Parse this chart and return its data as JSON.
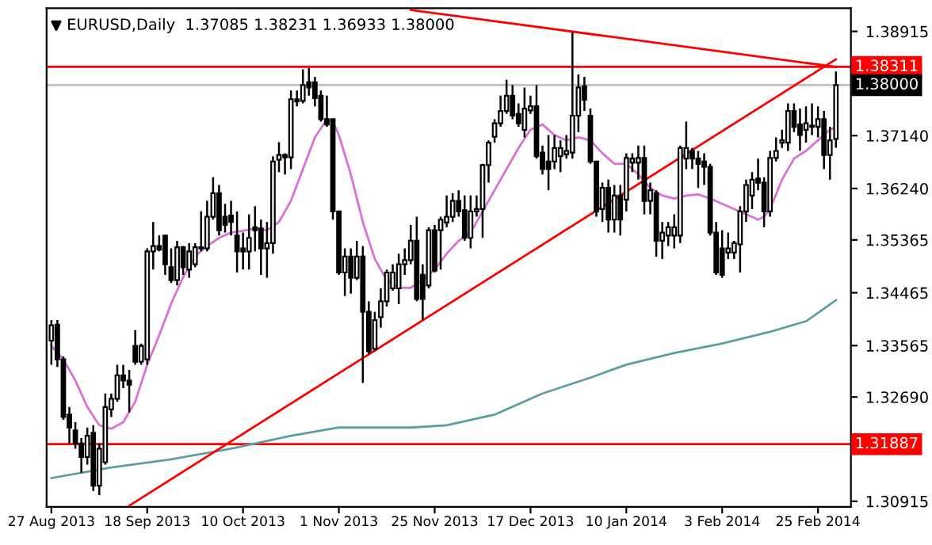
{
  "chart_data": {
    "type": "candlestick",
    "title": "EURUSD,Daily  1.37085 1.38231 1.36933 1.38000",
    "categories": [
      "27 Aug 2013",
      null,
      null,
      null,
      null,
      null,
      null,
      null,
      null,
      null,
      null,
      null,
      null,
      null,
      null,
      null,
      "18 Sep 2013",
      null,
      null,
      null,
      null,
      null,
      null,
      null,
      null,
      null,
      null,
      null,
      null,
      null,
      null,
      null,
      "10 Oct 2013",
      null,
      null,
      null,
      null,
      null,
      null,
      null,
      null,
      null,
      null,
      null,
      null,
      null,
      null,
      null,
      "1 Nov 2013",
      null,
      null,
      null,
      null,
      null,
      null,
      null,
      null,
      null,
      null,
      null,
      null,
      null,
      null,
      null,
      "25 Nov 2013",
      null,
      null,
      null,
      null,
      null,
      null,
      null,
      null,
      null,
      null,
      null,
      null,
      null,
      null,
      null,
      "17 Dec 2013",
      null,
      null,
      null,
      null,
      null,
      null,
      null,
      null,
      null,
      null,
      null,
      null,
      null,
      null,
      null,
      "10 Jan 2014",
      null,
      null,
      null,
      null,
      null,
      null,
      null,
      null,
      null,
      null,
      null,
      null,
      null,
      null,
      null,
      "3 Feb 2014",
      null,
      null,
      null,
      null,
      null,
      null,
      null,
      null,
      null,
      null,
      null,
      null,
      null,
      null,
      null,
      "25 Feb 2014",
      null,
      null,
      null
    ],
    "ohlc": [
      [
        1.3365,
        1.34,
        1.3324,
        1.3391
      ],
      [
        1.3392,
        1.34,
        1.332,
        1.3333
      ],
      [
        1.3333,
        1.3338,
        1.323,
        1.3235
      ],
      [
        1.3239,
        1.3252,
        1.319,
        1.3217
      ],
      [
        1.3212,
        1.3226,
        1.3181,
        1.319
      ],
      [
        1.319,
        1.3199,
        1.314,
        1.3167
      ],
      [
        1.3167,
        1.3217,
        1.3154,
        1.3203
      ],
      [
        1.3208,
        1.3221,
        1.3109,
        1.3118
      ],
      [
        1.3118,
        1.319,
        1.3102,
        1.3181
      ],
      [
        1.3158,
        1.3275,
        1.3154,
        1.3252
      ],
      [
        1.3248,
        1.3275,
        1.3235,
        1.3266
      ],
      [
        1.3266,
        1.3324,
        1.3261,
        1.3306
      ],
      [
        1.3306,
        1.3324,
        1.3284,
        1.3297
      ],
      [
        1.3297,
        1.3315,
        1.3243,
        1.329
      ],
      [
        1.3356,
        1.3383,
        1.3324,
        1.3329
      ],
      [
        1.3329,
        1.336,
        1.3324,
        1.3356
      ],
      [
        1.3333,
        1.3522,
        1.3324,
        1.3517
      ],
      [
        1.3517,
        1.3567,
        1.3486,
        1.3526
      ],
      [
        1.3526,
        1.3544,
        1.3517,
        1.352
      ],
      [
        1.3544,
        1.3544,
        1.3477,
        1.3495
      ],
      [
        1.349,
        1.3522,
        1.3463,
        1.3468
      ],
      [
        1.3468,
        1.3535,
        1.3459,
        1.3524
      ],
      [
        1.3524,
        1.3526,
        1.3477,
        1.349
      ],
      [
        1.3486,
        1.3531,
        1.3472,
        1.3517
      ],
      [
        1.3495,
        1.3531,
        1.349,
        1.3524
      ],
      [
        1.3524,
        1.3585,
        1.3517,
        1.3522
      ],
      [
        1.3522,
        1.3603,
        1.3517,
        1.3576
      ],
      [
        1.3576,
        1.3643,
        1.3571,
        1.3616
      ],
      [
        1.3616,
        1.363,
        1.3544,
        1.3553
      ],
      [
        1.3576,
        1.3598,
        1.3549,
        1.3562
      ],
      [
        1.3578,
        1.3603,
        1.3544,
        1.3567
      ],
      [
        1.3544,
        1.3585,
        1.3481,
        1.3517
      ],
      [
        1.3522,
        1.3549,
        1.3486,
        1.3517
      ],
      [
        1.3517,
        1.358,
        1.3486,
        1.354
      ],
      [
        1.3558,
        1.3594,
        1.3517,
        1.3553
      ],
      [
        1.3556,
        1.3571,
        1.3477,
        1.3522
      ],
      [
        1.3522,
        1.3567,
        1.3472,
        1.3531
      ],
      [
        1.3531,
        1.3679,
        1.3513,
        1.367
      ],
      [
        1.3673,
        1.3703,
        1.3652,
        1.3681
      ],
      [
        1.3681,
        1.3684,
        1.3648,
        1.3677
      ],
      [
        1.3677,
        1.3791,
        1.3657,
        1.3776
      ],
      [
        1.3776,
        1.3791,
        1.3764,
        1.3772
      ],
      [
        1.3773,
        1.3827,
        1.3769,
        1.38
      ],
      [
        1.3805,
        1.3829,
        1.3782,
        1.3796
      ],
      [
        1.3805,
        1.3814,
        1.3764,
        1.3778
      ],
      [
        1.3782,
        1.3791,
        1.3738,
        1.3742
      ],
      [
        1.3742,
        1.3782,
        1.3729,
        1.3733
      ],
      [
        1.3742,
        1.3742,
        1.3571,
        1.3585
      ],
      [
        1.3585,
        1.3585,
        1.3477,
        1.3481
      ],
      [
        1.3481,
        1.3522,
        1.3441,
        1.3508
      ],
      [
        1.3508,
        1.3522,
        1.3445,
        1.3472
      ],
      [
        1.3472,
        1.3535,
        1.3468,
        1.3508
      ],
      [
        1.3508,
        1.3526,
        1.3293,
        1.3414
      ],
      [
        1.3414,
        1.3432,
        1.3342,
        1.3347
      ],
      [
        1.3351,
        1.3414,
        1.3347,
        1.34
      ],
      [
        1.3405,
        1.3454,
        1.3387,
        1.3432
      ],
      [
        1.3432,
        1.3486,
        1.3423,
        1.3481
      ],
      [
        1.3454,
        1.3495,
        1.345,
        1.3481
      ],
      [
        1.3454,
        1.3513,
        1.3427,
        1.3495
      ],
      [
        1.3495,
        1.3522,
        1.3477,
        1.3502
      ],
      [
        1.3502,
        1.3562,
        1.3495,
        1.3535
      ],
      [
        1.3535,
        1.3576,
        1.3432,
        1.3436
      ],
      [
        1.3477,
        1.3495,
        1.34,
        1.3436
      ],
      [
        1.3459,
        1.3558,
        1.3454,
        1.3553
      ],
      [
        1.3553,
        1.3562,
        1.3481,
        1.3484
      ],
      [
        1.3553,
        1.3576,
        1.3486,
        1.3571
      ],
      [
        1.3566,
        1.3612,
        1.3558,
        1.3576
      ],
      [
        1.3576,
        1.3616,
        1.3567,
        1.3603
      ],
      [
        1.3603,
        1.3621,
        1.3576,
        1.3585
      ],
      [
        1.3587,
        1.3612,
        1.3535,
        1.354
      ],
      [
        1.354,
        1.3612,
        1.3522,
        1.3585
      ],
      [
        1.3585,
        1.3612,
        1.3576,
        1.3589
      ],
      [
        1.3589,
        1.3666,
        1.354,
        1.3664
      ],
      [
        1.3664,
        1.3706,
        1.3634,
        1.3702
      ],
      [
        1.3712,
        1.3742,
        1.3702,
        1.3735
      ],
      [
        1.3735,
        1.3782,
        1.3729,
        1.3756
      ],
      [
        1.3756,
        1.3809,
        1.3751,
        1.3782
      ],
      [
        1.3782,
        1.38,
        1.3742,
        1.3748
      ],
      [
        1.3751,
        1.3769,
        1.3729,
        1.3735
      ],
      [
        1.3724,
        1.3796,
        1.3711,
        1.376
      ],
      [
        1.3757,
        1.3782,
        1.3751,
        1.3764
      ],
      [
        1.3764,
        1.38,
        1.3675,
        1.3679
      ],
      [
        1.3685,
        1.3697,
        1.3648,
        1.3657
      ],
      [
        1.367,
        1.3715,
        1.3621,
        1.3657
      ],
      [
        1.367,
        1.3715,
        1.3657,
        1.3693
      ],
      [
        1.3679,
        1.3706,
        1.3652,
        1.3693
      ],
      [
        1.3682,
        1.3715,
        1.3675,
        1.3688
      ],
      [
        1.3685,
        1.389,
        1.3675,
        1.3748
      ],
      [
        1.3748,
        1.3818,
        1.372,
        1.3796
      ],
      [
        1.3798,
        1.3814,
        1.3756,
        1.3775
      ],
      [
        1.3748,
        1.376,
        1.3666,
        1.367
      ],
      [
        1.367,
        1.367,
        1.3576,
        1.3585
      ],
      [
        1.3589,
        1.3634,
        1.3567,
        1.3625
      ],
      [
        1.3625,
        1.3639,
        1.3549,
        1.3571
      ],
      [
        1.3571,
        1.363,
        1.3549,
        1.3612
      ],
      [
        1.3612,
        1.363,
        1.3544,
        1.3571
      ],
      [
        1.3605,
        1.3684,
        1.3585,
        1.3676
      ],
      [
        1.3668,
        1.3684,
        1.3652,
        1.3675
      ],
      [
        1.3668,
        1.3697,
        1.3639,
        1.3676
      ],
      [
        1.3676,
        1.3697,
        1.358,
        1.3603
      ],
      [
        1.3603,
        1.3634,
        1.358,
        1.3621
      ],
      [
        1.3616,
        1.3621,
        1.3508,
        1.3535
      ],
      [
        1.3535,
        1.3567,
        1.3504,
        1.3549
      ],
      [
        1.3544,
        1.3567,
        1.3526,
        1.3558
      ],
      [
        1.3544,
        1.358,
        1.3522,
        1.3558
      ],
      [
        1.3544,
        1.3697,
        1.3531,
        1.3693
      ],
      [
        1.3675,
        1.3738,
        1.3657,
        1.3693
      ],
      [
        1.3688,
        1.3693,
        1.3657,
        1.3675
      ],
      [
        1.3675,
        1.3688,
        1.3625,
        1.3666
      ],
      [
        1.367,
        1.3684,
        1.363,
        1.3661
      ],
      [
        1.3661,
        1.3666,
        1.3544,
        1.3549
      ],
      [
        1.3549,
        1.3567,
        1.3477,
        1.3481
      ],
      [
        1.3522,
        1.3553,
        1.3472,
        1.3477
      ],
      [
        1.3515,
        1.3549,
        1.3504,
        1.3522
      ],
      [
        1.3515,
        1.3535,
        1.3504,
        1.3531
      ],
      [
        1.3529,
        1.3594,
        1.3481,
        1.3585
      ],
      [
        1.3585,
        1.3639,
        1.3567,
        1.363
      ],
      [
        1.3612,
        1.3652,
        1.3589,
        1.3639
      ],
      [
        1.3641,
        1.3675,
        1.3621,
        1.3634
      ],
      [
        1.3634,
        1.3643,
        1.3558,
        1.3585
      ],
      [
        1.3585,
        1.3688,
        1.3576,
        1.3676
      ],
      [
        1.3676,
        1.3711,
        1.367,
        1.3688
      ],
      [
        1.3702,
        1.3724,
        1.3693,
        1.3706
      ],
      [
        1.3702,
        1.3769,
        1.3688,
        1.3756
      ],
      [
        1.3756,
        1.3769,
        1.372,
        1.3729
      ],
      [
        1.3733,
        1.376,
        1.3688,
        1.3715
      ],
      [
        1.3724,
        1.3764,
        1.3702,
        1.3735
      ],
      [
        1.3729,
        1.3769,
        1.3715,
        1.3731
      ],
      [
        1.3729,
        1.3764,
        1.3711,
        1.3742
      ],
      [
        1.3742,
        1.3756,
        1.3657,
        1.3681
      ],
      [
        1.3681,
        1.3729,
        1.3639,
        1.3706
      ],
      [
        1.37085,
        1.38231,
        1.36933,
        1.38
      ]
    ],
    "series": [
      {
        "type": "line",
        "color": "#da70d6",
        "values": [
          1.3356,
          null,
          1.3333,
          null,
          1.3297,
          null,
          1.3252,
          null,
          1.3221,
          null,
          1.3215,
          null,
          1.3226,
          null,
          1.3261,
          null,
          1.3324,
          null,
          1.3374,
          null,
          1.3428,
          null,
          1.3473,
          null,
          1.3509,
          null,
          1.3526,
          null,
          1.354,
          null,
          1.3549,
          null,
          1.3552,
          null,
          1.3556,
          null,
          1.3553,
          null,
          1.3567,
          null,
          1.3603,
          null,
          1.3657,
          null,
          1.3711,
          null,
          1.3742,
          1.3738,
          1.3715,
          null,
          1.3648,
          null,
          1.3567,
          null,
          1.3504,
          null,
          1.3468,
          null,
          1.3455,
          null,
          1.3455,
          null,
          1.3468,
          null,
          1.3486,
          null,
          1.3513,
          null,
          1.3535,
          null,
          1.3549,
          null,
          1.3585,
          null,
          1.3621,
          null,
          1.3657,
          null,
          1.3693,
          null,
          1.3724,
          null,
          1.3733,
          null,
          1.3715,
          null,
          1.3706,
          null,
          1.3711,
          null,
          1.3706,
          null,
          1.3684,
          null,
          1.3666,
          null,
          1.3666,
          null,
          1.3648,
          null,
          1.3625,
          null,
          1.3612,
          null,
          1.3607,
          null,
          1.3612,
          null,
          1.3614,
          null,
          1.3607,
          null,
          1.3598,
          null,
          1.3589,
          null,
          1.358,
          null,
          1.3571,
          1.3576,
          1.3589,
          null,
          1.3639,
          null,
          1.3675,
          null,
          1.3688,
          null,
          1.3706,
          null,
          1.3724,
          1.3729
        ]
      },
      {
        "type": "line",
        "color": "#5f9ea0",
        "values": [
          1.3131,
          null,
          null,
          null,
          null,
          null,
          null,
          null,
          null,
          null,
          1.3149,
          null,
          null,
          null,
          null,
          null,
          null,
          null,
          null,
          null,
          1.3163,
          null,
          null,
          null,
          null,
          null,
          null,
          null,
          null,
          null,
          1.3181,
          null,
          null,
          null,
          null,
          null,
          null,
          null,
          null,
          null,
          1.3203,
          null,
          null,
          null,
          null,
          null,
          null,
          null,
          1.3217,
          null,
          null,
          null,
          1.3217,
          null,
          null,
          null,
          null,
          null,
          null,
          null,
          1.3217,
          null,
          null,
          null,
          null,
          null,
          1.3221,
          null,
          null,
          null,
          null,
          null,
          null,
          null,
          1.3239,
          null,
          null,
          null,
          null,
          null,
          null,
          null,
          1.3275,
          null,
          null,
          null,
          null,
          null,
          null,
          null,
          1.3302,
          null,
          null,
          null,
          null,
          null,
          1.3324,
          null,
          null,
          null,
          null,
          null,
          null,
          null,
          1.3344,
          null,
          null,
          null,
          null,
          null,
          null,
          null,
          1.336,
          null,
          null,
          null,
          null,
          null,
          null,
          null,
          1.338,
          null,
          null,
          null,
          null,
          null,
          1.3398,
          null,
          null,
          null,
          null,
          1.3434
        ]
      },
      {
        "type": "line",
        "color": "#ff0000",
        "values": [
          null,
          null,
          null,
          null,
          null,
          null,
          null,
          null,
          null,
          null,
          null,
          null,
          null,
          null,
          null,
          null,
          null,
          null,
          null,
          null,
          null,
          null,
          null,
          null,
          null,
          null,
          null,
          null,
          null,
          null,
          null,
          null,
          null,
          null,
          null,
          null,
          null,
          null,
          null,
          null,
          null,
          null,
          null,
          null,
          null,
          null,
          null,
          null,
          null,
          null,
          null,
          null,
          null,
          null,
          null,
          null,
          null,
          null,
          null,
          null,
          1.3928,
          null,
          null,
          null,
          null,
          null,
          null,
          null,
          null,
          null,
          null,
          null,
          null,
          null,
          null,
          null,
          null,
          null,
          null,
          null,
          null,
          null,
          null,
          null,
          null,
          null,
          null,
          null,
          null,
          null,
          null,
          null,
          null,
          null,
          null,
          null,
          null,
          null,
          null,
          null,
          null,
          null,
          null,
          null,
          null,
          null,
          null,
          null,
          null,
          null,
          null,
          null,
          null,
          null,
          null,
          null,
          null,
          null,
          null,
          null,
          null,
          null,
          null,
          null,
          null,
          null,
          null,
          null,
          null,
          null,
          null,
          1.3831
        ]
      },
      {
        "type": "line",
        "color": "#ff0000",
        "values": [
          null,
          null,
          null,
          null,
          null,
          null,
          null,
          null,
          null,
          null,
          null,
          null,
          null,
          1.3084,
          null,
          null,
          null,
          null,
          null,
          null,
          null,
          null,
          null,
          null,
          null,
          null,
          null,
          null,
          null,
          null,
          null,
          null,
          null,
          null,
          null,
          null,
          null,
          null,
          null,
          null,
          null,
          null,
          null,
          null,
          null,
          null,
          null,
          null,
          null,
          null,
          null,
          null,
          null,
          null,
          null,
          null,
          null,
          null,
          null,
          null,
          null,
          null,
          null,
          null,
          null,
          null,
          null,
          null,
          null,
          null,
          null,
          null,
          null,
          null,
          null,
          null,
          null,
          null,
          null,
          null,
          null,
          null,
          null,
          null,
          null,
          null,
          null,
          null,
          null,
          null,
          null,
          null,
          null,
          null,
          null,
          null,
          null,
          null,
          null,
          null,
          null,
          null,
          null,
          null,
          null,
          null,
          null,
          null,
          null,
          null,
          null,
          null,
          null,
          null,
          null,
          null,
          null,
          null,
          null,
          null,
          null,
          null,
          null,
          null,
          null,
          null,
          null,
          null,
          null,
          null,
          null,
          1.3844
        ]
      }
    ],
    "ref_lines": [
      {
        "axis": "y",
        "value": 1.38311,
        "label": "1.38311",
        "color": "#ff0000"
      },
      {
        "axis": "y",
        "value": 1.38,
        "label": "1.38000",
        "color": "#c0c0c0"
      },
      {
        "axis": "y",
        "value": 1.31887,
        "label": "1.31887",
        "color": "#ff0000"
      }
    ],
    "ylim": [
      1.3082,
      1.3931
    ],
    "yticks": [
      1.38915,
      {
        "value": 1.3714,
        "label": "1.37140"
      },
      {
        "value": 1.3624,
        "label": "1.36240"
      },
      1.35365,
      1.34465,
      1.33565,
      {
        "value": 1.3269,
        "label": "1.32690"
      },
      1.30915
    ],
    "grid": false,
    "legend": false
  }
}
